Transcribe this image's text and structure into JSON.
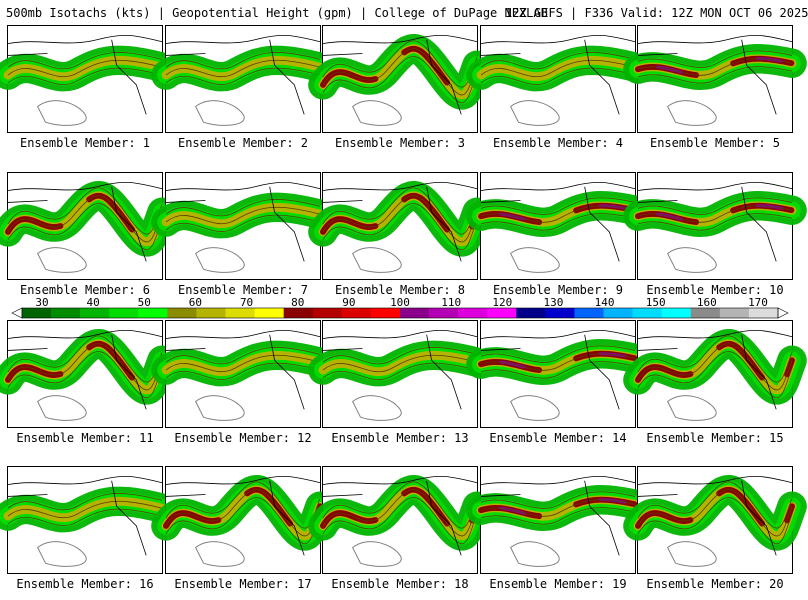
{
  "header": {
    "left": "500mb Isotachs (kts) | Geopotential Height (gpm) | College of DuPage NEXLAB",
    "right": "12Z GEFS | F336 Valid: 12Z MON OCT 06 2025"
  },
  "colorbar": {
    "labels": [
      "30",
      "40",
      "50",
      "60",
      "70",
      "80",
      "90",
      "100",
      "110",
      "120",
      "130",
      "140",
      "150",
      "160",
      "170"
    ],
    "colors": [
      "#006400",
      "#008c00",
      "#00b400",
      "#00dc00",
      "#00ff00",
      "#8b8b00",
      "#b4b400",
      "#dcdc00",
      "#ffff00",
      "#8b0000",
      "#b40000",
      "#dc0000",
      "#ff0000",
      "#8b008b",
      "#b400b4",
      "#dc00dc",
      "#ff00ff",
      "#00008b",
      "#0000cd",
      "#0064ff",
      "#00b4ff",
      "#00dcff",
      "#00ffff",
      "#8b8b8b",
      "#b4b4b4",
      "#dcdcdc"
    ]
  },
  "members": [
    {
      "label": "Ensemble Member: 1",
      "jet": "weak"
    },
    {
      "label": "Ensemble Member: 2",
      "jet": "weak"
    },
    {
      "label": "Ensemble Member: 3",
      "jet": "wavy"
    },
    {
      "label": "Ensemble Member: 4",
      "jet": "weak"
    },
    {
      "label": "Ensemble Member: 5",
      "jet": "strong"
    },
    {
      "label": "Ensemble Member: 6",
      "jet": "wavy"
    },
    {
      "label": "Ensemble Member: 7",
      "jet": "weak"
    },
    {
      "label": "Ensemble Member: 8",
      "jet": "wavy"
    },
    {
      "label": "Ensemble Member: 9",
      "jet": "strong"
    },
    {
      "label": "Ensemble Member: 10",
      "jet": "strong"
    },
    {
      "label": "Ensemble Member: 11",
      "jet": "wavy"
    },
    {
      "label": "Ensemble Member: 12",
      "jet": "weak"
    },
    {
      "label": "Ensemble Member: 13",
      "jet": "weak"
    },
    {
      "label": "Ensemble Member: 14",
      "jet": "strong"
    },
    {
      "label": "Ensemble Member: 15",
      "jet": "wavy"
    },
    {
      "label": "Ensemble Member: 16",
      "jet": "weak"
    },
    {
      "label": "Ensemble Member: 17",
      "jet": "wavy"
    },
    {
      "label": "Ensemble Member: 18",
      "jet": "wavy"
    },
    {
      "label": "Ensemble Member: 19",
      "jet": "strong"
    },
    {
      "label": "Ensemble Member: 20",
      "jet": "wavy"
    }
  ]
}
